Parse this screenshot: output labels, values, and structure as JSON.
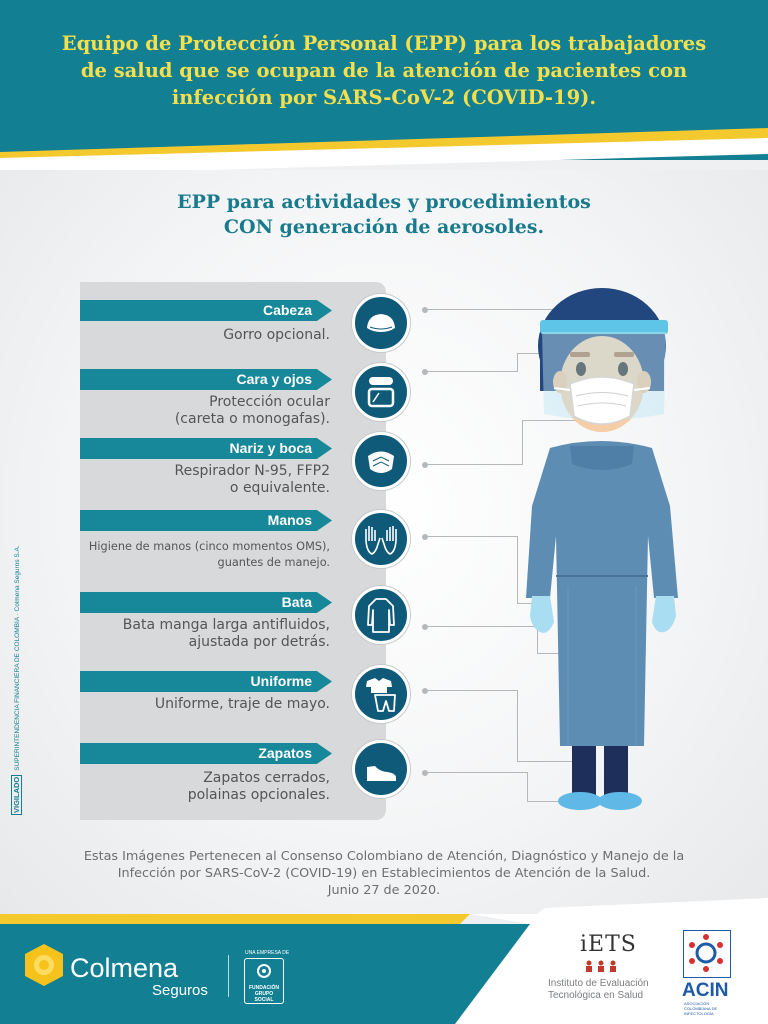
{
  "header": {
    "title_line1": "Equipo de Protección Personal (EPP) para los trabajadores",
    "title_line2": "de salud que se ocupan de la atención de pacientes con",
    "title_line3": "infección por SARS-CoV-2 (COVID-19)."
  },
  "subtitle": {
    "line1": "EPP para actividades y procedimientos",
    "line2": "CON generación de aerosoles."
  },
  "items": [
    {
      "label": "Cabeza",
      "desc1": "Gorro opcional.",
      "desc2": "",
      "icon": "cap-icon"
    },
    {
      "label": "Cara y ojos",
      "desc1": "Protección ocular",
      "desc2": "(careta o monogafas).",
      "icon": "goggles-icon"
    },
    {
      "label": "Nariz y boca",
      "desc1": "Respirador N-95, FFP2",
      "desc2": "o equivalente.",
      "icon": "respirator-icon"
    },
    {
      "label": "Manos",
      "desc1": "Higiene de manos (cinco momentos OMS),",
      "desc2": "guantes de manejo.",
      "icon": "gloves-icon"
    },
    {
      "label": "Bata",
      "desc1": "Bata manga larga antifluidos,",
      "desc2": "ajustada por detrás.",
      "icon": "gown-icon"
    },
    {
      "label": "Uniforme",
      "desc1": "Uniforme, traje de mayo.",
      "desc2": "",
      "icon": "uniform-icon"
    },
    {
      "label": "Zapatos",
      "desc1": "Zapatos cerrados,",
      "desc2": "polainas opcionales.",
      "icon": "shoe-icon"
    }
  ],
  "credit": {
    "line1": "Estas Imágenes Pertenecen al Consenso Colombiano de Atención, Diagnóstico y Manejo de la",
    "line2": "Infección por SARS-CoV-2 (COVID-19) en Establecimientos de Atención de la Salud.",
    "line3": "Junio 27 de 2020."
  },
  "side_note": {
    "vigilado": "VIGILADO",
    "text": "SUPERINTENDENCIA FINANCIERA DE COLOMBIA · Colmena Seguros S.A."
  },
  "footer": {
    "brand": "Colmena",
    "brand_sub": "Seguros",
    "group_top": "UNA EMPRESA DE",
    "group_name_line1": "FUNDACIÓN",
    "group_name_line2": "GRUPO SOCIAL",
    "iets_title": "iETS",
    "iets_line1": "Instituto de Evaluación",
    "iets_line2": "Tecnológica en Salud",
    "acin": "ACIN",
    "acin_sub": "ASOCIACIÓN COLOMBIANA DE INFECTOLOGÍA"
  },
  "colors": {
    "teal": "#127f93",
    "yellow": "#f5df4d",
    "navy_circle": "#0f5a78",
    "gown": "#5e8db4"
  }
}
